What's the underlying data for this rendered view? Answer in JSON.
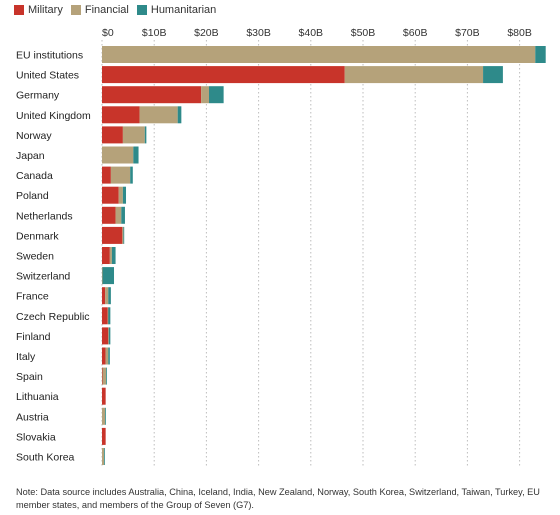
{
  "chart_data": {
    "type": "bar",
    "orientation": "horizontal",
    "stacked": true,
    "title": "",
    "xlabel": "",
    "ylabel": "",
    "xlim": [
      0,
      85
    ],
    "x_ticks": [
      {
        "value": 0,
        "label": "$0"
      },
      {
        "value": 10,
        "label": "$10B"
      },
      {
        "value": 20,
        "label": "$20B"
      },
      {
        "value": 30,
        "label": "$30B"
      },
      {
        "value": 40,
        "label": "$40B"
      },
      {
        "value": 50,
        "label": "$50B"
      },
      {
        "value": 60,
        "label": "$60B"
      },
      {
        "value": 70,
        "label": "$70B"
      },
      {
        "value": 80,
        "label": "$80B"
      }
    ],
    "grid": "vertical-dotted",
    "legend_position": "top-left",
    "categories": [
      "EU institutions",
      "United States",
      "Germany",
      "United Kingdom",
      "Norway",
      "Japan",
      "Canada",
      "Poland",
      "Netherlands",
      "Denmark",
      "Sweden",
      "Switzerland",
      "France",
      "Czech Republic",
      "Finland",
      "Italy",
      "Spain",
      "Lithuania",
      "Austria",
      "Slovakia",
      "South Korea"
    ],
    "series": [
      {
        "name": "Military",
        "color": "#c8342a",
        "values": [
          0,
          46.5,
          19,
          7.2,
          4,
          0,
          1.7,
          3.2,
          2.6,
          3.9,
          1.5,
          0,
          0.6,
          1.1,
          1.2,
          0.7,
          0.1,
          0.7,
          0,
          0.7,
          0
        ]
      },
      {
        "name": "Financial",
        "color": "#b5a27a",
        "values": [
          83,
          26.5,
          1.5,
          7.3,
          4.2,
          6,
          3.7,
          0.8,
          1.1,
          0.2,
          0.4,
          0.1,
          0.6,
          0.1,
          0.1,
          0.5,
          0.7,
          0,
          0.6,
          0,
          0.4
        ]
      },
      {
        "name": "Humanitarian",
        "color": "#2e8a8a",
        "values": [
          2,
          3.8,
          2.8,
          0.7,
          0.3,
          1,
          0.5,
          0.6,
          0.7,
          0.1,
          0.7,
          2.2,
          0.5,
          0.4,
          0.3,
          0.3,
          0.1,
          0,
          0.1,
          0,
          0.1
        ]
      }
    ]
  },
  "note": "Note: Data source includes Australia, China, Iceland, India, New Zealand, Norway, South Korea, Switzerland, Taiwan, Turkey, EU member states, and members of the Group of Seven (G7)."
}
